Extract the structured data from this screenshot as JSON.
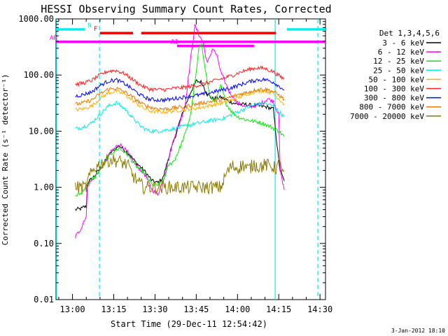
{
  "chart_data": {
    "type": "line",
    "title": "HESSI Observing Summary Count Rates, Corrected",
    "xlabel": "Start Time (29-Dec-11 12:54:42)",
    "ylabel": "Corrected Count Rate (s⁻¹ detector⁻¹)",
    "footer": "3-Jan-2012 18:10",
    "yscale": "log",
    "xlim": [
      0,
      98
    ],
    "ylim": [
      0.01,
      1000
    ],
    "x_ticks": [
      {
        "x": 6,
        "label": "13:00"
      },
      {
        "x": 21,
        "label": "13:15"
      },
      {
        "x": 36,
        "label": "13:30"
      },
      {
        "x": 51,
        "label": "13:45"
      },
      {
        "x": 66,
        "label": "14:00"
      },
      {
        "x": 81,
        "label": "14:15"
      },
      {
        "x": 96,
        "label": "14:30"
      }
    ],
    "y_ticks": [
      {
        "y": 1000,
        "label": "1000.00"
      },
      {
        "y": 100,
        "label": "100.00"
      },
      {
        "y": 10,
        "label": "10.00"
      },
      {
        "y": 1,
        "label": "1.00"
      },
      {
        "y": 0.1,
        "label": "0.10"
      },
      {
        "y": 0.01,
        "label": "0.01"
      }
    ],
    "legend": {
      "title": "Det 1,3,4,5,6",
      "placement": "right"
    },
    "series": [
      {
        "name": "3 - 6 keV",
        "color": "#000000",
        "x": [
          7,
          9.5,
          10,
          11,
          11.5,
          14,
          17,
          20,
          23,
          26,
          29,
          32,
          35,
          37,
          39,
          41,
          43,
          45,
          47,
          49,
          51,
          53,
          55,
          57,
          60,
          63,
          66,
          69,
          71,
          74,
          76.5,
          79,
          81,
          81.5,
          83
        ],
        "y": [
          0.4,
          0.42,
          0.45,
          0.45,
          1.2,
          1.6,
          2.5,
          4.2,
          5.5,
          4.2,
          2.8,
          2,
          1.3,
          1.2,
          1.5,
          3.5,
          7,
          15,
          28,
          50,
          78,
          75,
          45,
          38,
          40,
          34,
          30,
          30,
          29,
          28,
          27,
          25,
          3,
          2,
          1.3
        ]
      },
      {
        "name": "6 - 12 keV",
        "color": "#ff00ff",
        "x": [
          7,
          9.5,
          10,
          11,
          11.5,
          14,
          17,
          20,
          23,
          26,
          29,
          32,
          35,
          37,
          39,
          41,
          43,
          45,
          47,
          49,
          50.5,
          52,
          53.5,
          55,
          57,
          58.5,
          60,
          63,
          66,
          69,
          72,
          75,
          77,
          79,
          81,
          81.5,
          83
        ],
        "y": [
          0.13,
          0.2,
          0.25,
          0.3,
          1.1,
          1.5,
          2.4,
          4.3,
          6,
          4.2,
          2.5,
          1.8,
          0.9,
          0.75,
          1.3,
          3.2,
          8,
          14,
          30,
          200,
          750,
          520,
          380,
          160,
          300,
          220,
          110,
          50,
          32,
          27,
          28,
          32,
          38,
          34,
          20,
          2,
          0.9
        ]
      },
      {
        "name": "12 - 25 keV",
        "color": "#00ee00",
        "x": [
          7,
          9.5,
          11,
          14,
          17,
          20,
          23,
          26,
          29,
          32,
          35,
          37,
          39,
          41,
          43,
          45,
          47,
          49,
          51,
          52,
          53,
          54,
          56,
          58,
          60,
          62,
          64,
          66,
          69,
          72,
          75,
          78,
          81,
          83
        ],
        "y": [
          0.7,
          0.8,
          1.1,
          1.5,
          2.4,
          4,
          5,
          3.8,
          2.4,
          1.8,
          1.1,
          1.1,
          1.3,
          2.5,
          3,
          5,
          9,
          20,
          110,
          300,
          380,
          150,
          40,
          35,
          65,
          30,
          22,
          18,
          16,
          15,
          14,
          12,
          10,
          8
        ]
      },
      {
        "name": "25 - 50 keV",
        "color": "#00eeee",
        "x": [
          7,
          10,
          13,
          16,
          19,
          22,
          25,
          28,
          31,
          34,
          37,
          40,
          43,
          46,
          49,
          52,
          55,
          58,
          61,
          64,
          67,
          70,
          73,
          76,
          79,
          81,
          83
        ],
        "y": [
          11,
          12,
          14,
          20,
          28,
          32,
          25,
          17,
          12,
          10,
          10,
          10.5,
          11,
          12,
          13,
          14,
          15,
          16,
          17,
          20,
          23,
          27,
          30,
          31,
          28,
          22,
          18
        ]
      },
      {
        "name": "50 - 100 keV",
        "color": "#ffb000",
        "x": [
          7,
          10,
          13,
          16,
          19,
          22,
          25,
          28,
          31,
          34,
          37,
          40,
          43,
          46,
          49,
          52,
          55,
          58,
          61,
          64,
          67,
          70,
          73,
          76,
          79,
          81,
          83
        ],
        "y": [
          24,
          25,
          28,
          38,
          48,
          52,
          45,
          35,
          27,
          23,
          22,
          22,
          23,
          24,
          25,
          26,
          28,
          30,
          32,
          36,
          41,
          47,
          52,
          53,
          47,
          38,
          30
        ]
      },
      {
        "name": "100 - 300 keV",
        "color": "#ff2020",
        "x": [
          7,
          10,
          13,
          16,
          19,
          22,
          25,
          28,
          31,
          34,
          37,
          40,
          43,
          46,
          49,
          52,
          55,
          58,
          61,
          64,
          67,
          70,
          73,
          76,
          79,
          81,
          83
        ],
        "y": [
          68,
          72,
          80,
          100,
          118,
          120,
          105,
          82,
          65,
          56,
          55,
          55,
          58,
          60,
          63,
          66,
          72,
          80,
          88,
          98,
          112,
          125,
          135,
          130,
          115,
          98,
          85
        ]
      },
      {
        "name": "300 - 800 keV",
        "color": "#0000ff",
        "x": [
          7,
          10,
          13,
          16,
          19,
          22,
          25,
          28,
          31,
          34,
          37,
          40,
          43,
          46,
          49,
          52,
          55,
          58,
          61,
          64,
          67,
          70,
          73,
          76,
          79,
          81,
          83
        ],
        "y": [
          42,
          45,
          50,
          65,
          78,
          82,
          70,
          55,
          43,
          37,
          36,
          36,
          38,
          40,
          42,
          44,
          47,
          51,
          55,
          60,
          67,
          75,
          82,
          83,
          75,
          64,
          55
        ]
      },
      {
        "name": "800 - 7000 keV",
        "color": "#e07a00",
        "x": [
          7,
          10,
          13,
          16,
          19,
          22,
          25,
          28,
          31,
          34,
          37,
          40,
          43,
          46,
          49,
          52,
          55,
          58,
          61,
          64,
          67,
          70,
          73,
          76,
          79,
          81,
          83
        ],
        "y": [
          30,
          32,
          36,
          46,
          56,
          58,
          50,
          40,
          31,
          27,
          25,
          25,
          26,
          27,
          29,
          31,
          33,
          35,
          37,
          41,
          46,
          50,
          55,
          56,
          51,
          44,
          37
        ]
      },
      {
        "name": "7000 - 20000 keV",
        "color": "#8b7a00",
        "x": [
          7,
          11,
          12,
          14,
          17,
          20,
          23,
          26,
          28,
          30,
          32,
          33,
          58,
          60,
          62,
          64,
          66,
          68,
          70,
          72,
          74,
          76,
          78,
          80,
          81,
          82,
          83
        ],
        "y": [
          1,
          1,
          1.5,
          2.2,
          2.8,
          3.1,
          2.9,
          2.5,
          1.6,
          1.2,
          1,
          1,
          1,
          1,
          1.8,
          2.4,
          2.2,
          2.5,
          2.1,
          2.6,
          2.3,
          2.5,
          2.4,
          2.2,
          2.6,
          2.3,
          2
        ]
      }
    ],
    "event_bars": [
      {
        "label": "N",
        "color": "#00eeee",
        "row": 1000,
        "segments": [
          [
            0,
            10.5
          ],
          [
            84,
            98
          ]
        ]
      },
      {
        "label": "F",
        "color": "#ee0000",
        "row": 560,
        "segments": [
          [
            16,
            28
          ],
          [
            31,
            80
          ]
        ]
      },
      {
        "label": "AR",
        "color": "#ff00ff",
        "row": 390,
        "segments": [
          [
            0,
            98
          ]
        ]
      },
      {
        "label": "A1",
        "color": "#ff00ff",
        "row": 330,
        "segments": [
          [
            44,
            72
          ]
        ]
      }
    ],
    "vertical_lines": [
      {
        "x": 0.2,
        "color": "#00eeee",
        "style": "solid"
      },
      {
        "x": 15.8,
        "color": "#00eeee",
        "style": "dashed"
      },
      {
        "x": 79.7,
        "color": "#00eeee",
        "style": "solid"
      },
      {
        "x": 95.2,
        "color": "#00eeee",
        "style": "dashed"
      }
    ]
  }
}
